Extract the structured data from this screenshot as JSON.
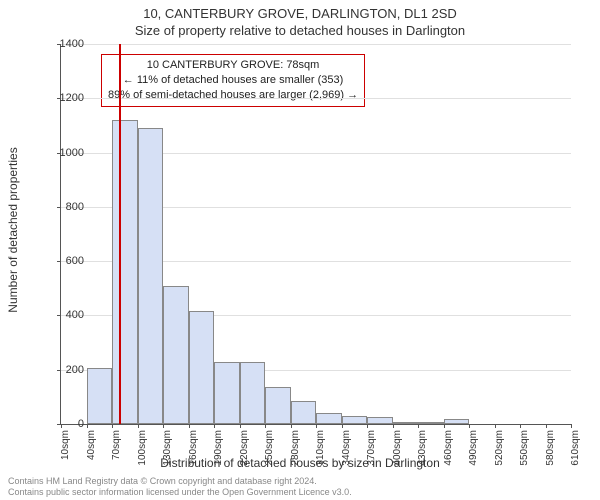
{
  "title": "10, CANTERBURY GROVE, DARLINGTON, DL1 2SD",
  "subtitle": "Size of property relative to detached houses in Darlington",
  "y_axis_label": "Number of detached properties",
  "x_axis_label": "Distribution of detached houses by size in Darlington",
  "footer_line1": "Contains HM Land Registry data © Crown copyright and database right 2024.",
  "footer_line2": "Contains public sector information licensed under the Open Government Licence v3.0.",
  "chart": {
    "type": "histogram",
    "bar_fill": "#d6e0f5",
    "bar_border": "#888888",
    "grid_color": "#e0e0e0",
    "axis_color": "#555555",
    "background": "#ffffff",
    "ylim": [
      0,
      1400
    ],
    "ytick_step": 200,
    "yticks": [
      0,
      200,
      400,
      600,
      800,
      1000,
      1200,
      1400
    ],
    "x_bin_width": 30,
    "x_range": [
      10,
      610
    ],
    "x_labels": [
      "10sqm",
      "40sqm",
      "70sqm",
      "100sqm",
      "130sqm",
      "160sqm",
      "190sqm",
      "220sqm",
      "250sqm",
      "280sqm",
      "310sqm",
      "340sqm",
      "370sqm",
      "400sqm",
      "430sqm",
      "460sqm",
      "490sqm",
      "520sqm",
      "550sqm",
      "580sqm",
      "610sqm"
    ],
    "bars": [
      {
        "start": 10,
        "value": 0
      },
      {
        "start": 40,
        "value": 205
      },
      {
        "start": 70,
        "value": 1120
      },
      {
        "start": 100,
        "value": 1090
      },
      {
        "start": 130,
        "value": 510
      },
      {
        "start": 160,
        "value": 415
      },
      {
        "start": 190,
        "value": 230
      },
      {
        "start": 220,
        "value": 230
      },
      {
        "start": 250,
        "value": 135
      },
      {
        "start": 280,
        "value": 85
      },
      {
        "start": 310,
        "value": 40
      },
      {
        "start": 340,
        "value": 30
      },
      {
        "start": 370,
        "value": 25
      },
      {
        "start": 400,
        "value": 8
      },
      {
        "start": 430,
        "value": 5
      },
      {
        "start": 460,
        "value": 20
      },
      {
        "start": 490,
        "value": 0
      },
      {
        "start": 520,
        "value": 0
      },
      {
        "start": 550,
        "value": 0
      },
      {
        "start": 580,
        "value": 0
      }
    ],
    "marker": {
      "value_sqm": 78,
      "color": "#cc0000"
    }
  },
  "annotation": {
    "line1": "10 CANTERBURY GROVE: 78sqm",
    "line2": "← 11% of detached houses are smaller (353)",
    "line3": "89% of semi-detached houses are larger (2,969) →",
    "border_color": "#cc0000",
    "background": "#ffffff",
    "fontsize": 11
  }
}
